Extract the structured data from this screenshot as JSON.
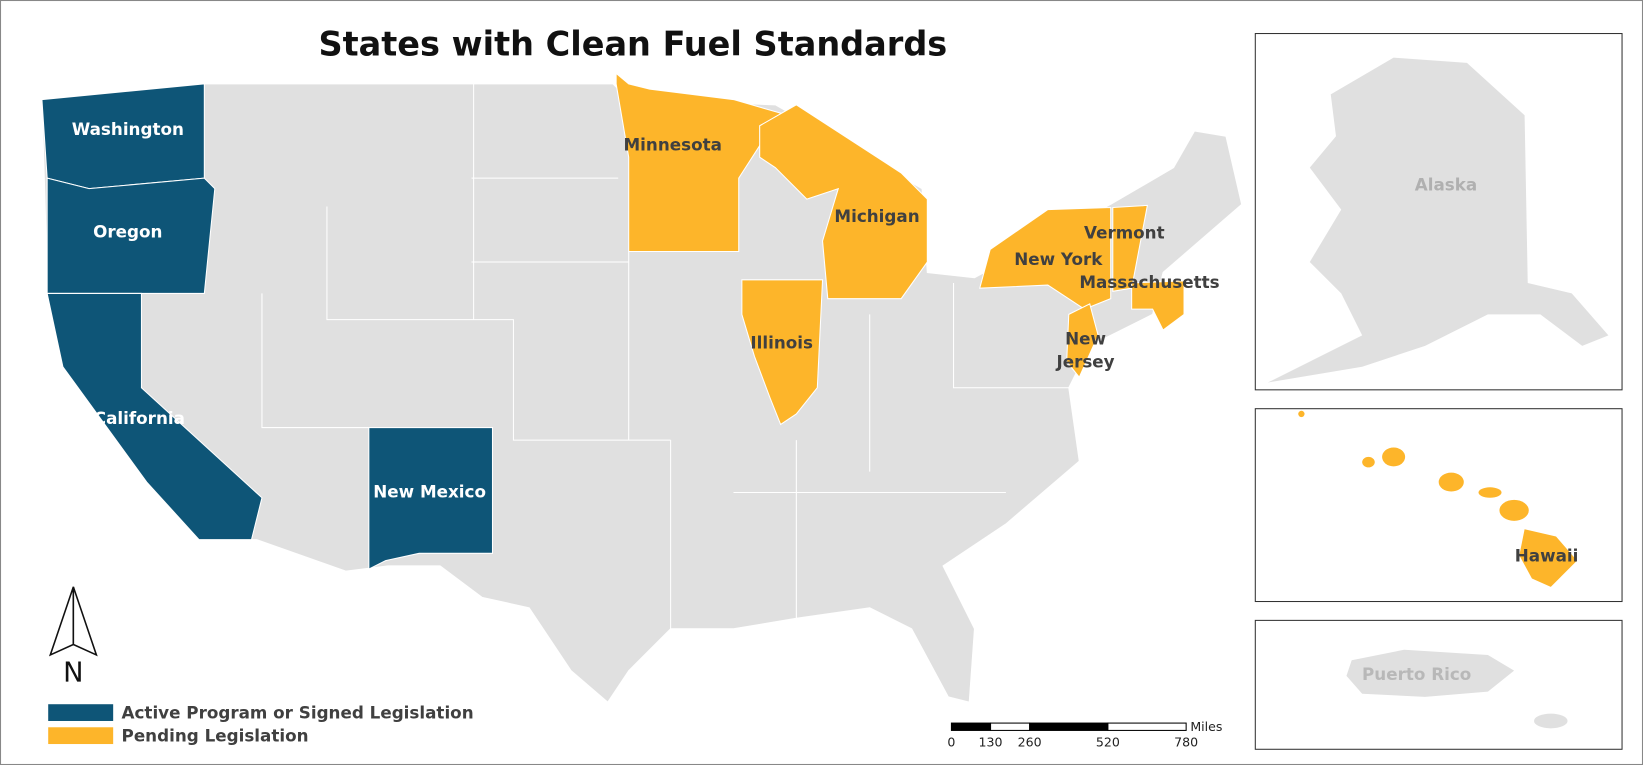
{
  "title": "States with Clean Fuel Standards",
  "states": [
    {
      "label": "Washington",
      "color": "#0e5577"
    },
    {
      "label": "Oregon",
      "color": "#0e5577"
    },
    {
      "label": "California",
      "color": "#0e5577"
    },
    {
      "label": "New Mexico",
      "color": "#0e5577"
    },
    {
      "label": "Minnesota",
      "color": "#fdb52a"
    },
    {
      "label": "Michigan",
      "color": "#fdb52a"
    },
    {
      "label": "Illinois",
      "color": "#fdb52a"
    },
    {
      "label": "New York",
      "color": "#fdb52a"
    },
    {
      "label": "Vermont",
      "color": "#fdb52a"
    },
    {
      "label": "Massachusetts",
      "color": "#fdb52a"
    },
    {
      "label": "New Jersey",
      "color": "#fdb52a"
    }
  ],
  "insets": [
    "Alaska",
    "Hawaii",
    "Puerto Rico"
  ],
  "legend": [
    {
      "label": "Active Program or Signed Legislation",
      "color": "#0e5577"
    },
    {
      "label": "Pending Legislation",
      "color": "#fdb52a"
    }
  ],
  "north": "N",
  "scale": {
    "unit": "Miles",
    "ticks": [
      0,
      130,
      260,
      520,
      780
    ]
  }
}
